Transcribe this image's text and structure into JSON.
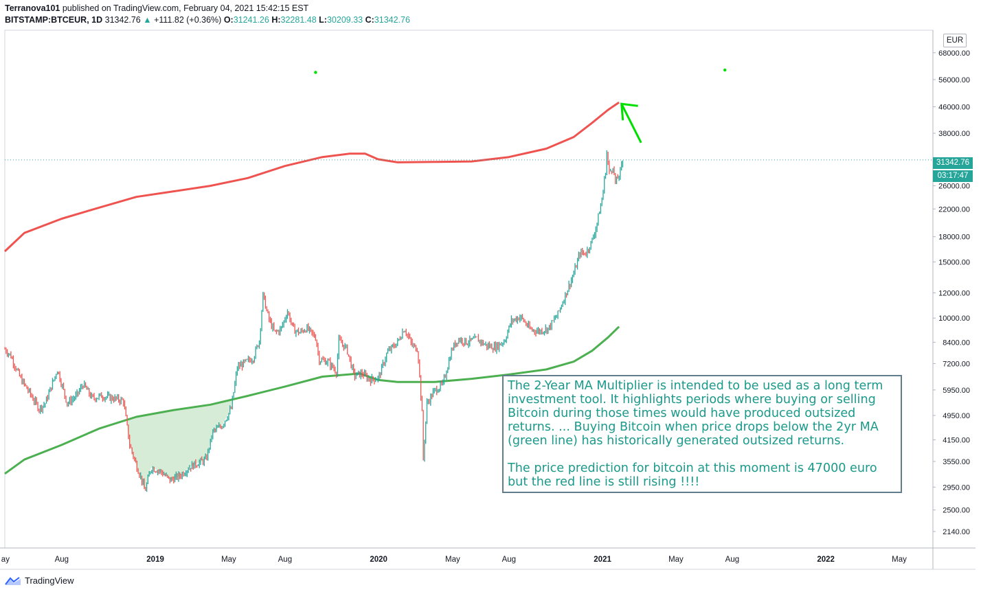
{
  "header": {
    "publisher": "Terranova101",
    "published_text": "published on TradingView.com, February 04, 2021 15:42:15 EST",
    "symbol": "BITSTAMP:BTCEUR, 1D",
    "last": "31342.76",
    "change": "+111.82 (+0.36%)",
    "o_label": "O:",
    "o": "31241.26",
    "h_label": "H:",
    "h": "32281.48",
    "l_label": "L:",
    "l": "30209.33",
    "c_label": "C:",
    "c": "31342.76"
  },
  "currency": "EUR",
  "price_tag": {
    "price": "31342.76",
    "countdown": "03:17:47"
  },
  "annotation": {
    "text": "The 2-Year MA Multiplier is intended to be used as a long term investment tool. It highlights periods where buying or selling Bitcoin during those times would have produced outsized returns. ... Buying Bitcoin when price drops below the 2yr MA (green line) has historically generated outsized returns.\n\nThe price prediction for bitcoin at this moment is 47000 euro but the red line is still rising !!!!"
  },
  "footer": {
    "brand": "TradingView"
  },
  "colors": {
    "candle_up": "#26a69a",
    "candle_down": "#ef5350",
    "ma_red": "#ef5350",
    "ma_green": "#4caf50",
    "arrow": "#00e000",
    "fill_green": "#c8e6c9"
  },
  "chart_data": {
    "type": "line",
    "title": "",
    "scale": "log",
    "ylim": [
      1900,
      80000
    ],
    "y_ticks": [
      "68000.00",
      "56000.00",
      "46000.00",
      "38000.00",
      "31342.76",
      "26000.00",
      "22000.00",
      "18000.00",
      "15000.00",
      "12000.00",
      "10000.00",
      "8400.00",
      "7200.00",
      "5950.00",
      "4950.00",
      "4150.00",
      "3550.00",
      "2950.00",
      "2500.00",
      "2140.00"
    ],
    "x_ticks": [
      {
        "label": "ay",
        "date": "2018-05-01"
      },
      {
        "label": "Aug",
        "date": "2018-08-01"
      },
      {
        "label": "2019",
        "date": "2019-01-01"
      },
      {
        "label": "May",
        "date": "2019-05-01"
      },
      {
        "label": "Aug",
        "date": "2019-08-01"
      },
      {
        "label": "2020",
        "date": "2020-01-01"
      },
      {
        "label": "May",
        "date": "2020-05-01"
      },
      {
        "label": "Aug",
        "date": "2020-08-01"
      },
      {
        "label": "2021",
        "date": "2021-01-01"
      },
      {
        "label": "May",
        "date": "2021-05-01"
      },
      {
        "label": "Aug",
        "date": "2021-08-01"
      },
      {
        "label": "2022",
        "date": "2022-01-01"
      },
      {
        "label": "May",
        "date": "2022-05-01"
      }
    ],
    "bold_x_labels": [
      "2019",
      "2020",
      "2021",
      "2022"
    ],
    "series": [
      {
        "name": "",
        "style": "price",
        "points": [
          [
            "2018-04-30",
            8000
          ],
          [
            "2018-05-10",
            7600
          ],
          [
            "2018-05-25",
            6500
          ],
          [
            "2018-06-10",
            5800
          ],
          [
            "2018-06-25",
            5200
          ],
          [
            "2018-07-05",
            5400
          ],
          [
            "2018-07-25",
            6900
          ],
          [
            "2018-08-10",
            5400
          ],
          [
            "2018-08-25",
            5700
          ],
          [
            "2018-09-05",
            6200
          ],
          [
            "2018-09-20",
            5600
          ],
          [
            "2018-10-05",
            5700
          ],
          [
            "2018-10-25",
            5600
          ],
          [
            "2018-11-10",
            5500
          ],
          [
            "2018-11-20",
            4000
          ],
          [
            "2018-11-30",
            3500
          ],
          [
            "2018-12-10",
            3100
          ],
          [
            "2018-12-15",
            2850
          ],
          [
            "2018-12-25",
            3400
          ],
          [
            "2019-01-10",
            3300
          ],
          [
            "2019-01-25",
            3100
          ],
          [
            "2019-02-10",
            3200
          ],
          [
            "2019-02-25",
            3400
          ],
          [
            "2019-03-10",
            3500
          ],
          [
            "2019-03-25",
            3600
          ],
          [
            "2019-04-05",
            4400
          ],
          [
            "2019-04-20",
            4600
          ],
          [
            "2019-05-05",
            5200
          ],
          [
            "2019-05-15",
            7000
          ],
          [
            "2019-05-25",
            7200
          ],
          [
            "2019-06-10",
            7500
          ],
          [
            "2019-06-20",
            8500
          ],
          [
            "2019-06-26",
            11800
          ],
          [
            "2019-07-05",
            10000
          ],
          [
            "2019-07-15",
            9000
          ],
          [
            "2019-07-25",
            9200
          ],
          [
            "2019-08-05",
            10500
          ],
          [
            "2019-08-15",
            9200
          ],
          [
            "2019-08-25",
            9000
          ],
          [
            "2019-09-05",
            9300
          ],
          [
            "2019-09-20",
            8700
          ],
          [
            "2019-09-26",
            7400
          ],
          [
            "2019-10-10",
            7300
          ],
          [
            "2019-10-24",
            6800
          ],
          [
            "2019-10-28",
            8500
          ],
          [
            "2019-11-10",
            8000
          ],
          [
            "2019-11-22",
            6600
          ],
          [
            "2019-12-05",
            6700
          ],
          [
            "2019-12-18",
            6400
          ],
          [
            "2020-01-01",
            6500
          ],
          [
            "2020-01-15",
            7800
          ],
          [
            "2020-02-01",
            8400
          ],
          [
            "2020-02-12",
            9300
          ],
          [
            "2020-02-25",
            8200
          ],
          [
            "2020-03-05",
            8000
          ],
          [
            "2020-03-12",
            5000
          ],
          [
            "2020-03-13",
            3400
          ],
          [
            "2020-03-20",
            5400
          ],
          [
            "2020-04-01",
            5900
          ],
          [
            "2020-04-15",
            6200
          ],
          [
            "2020-04-30",
            8000
          ],
          [
            "2020-05-10",
            8600
          ],
          [
            "2020-05-25",
            8400
          ],
          [
            "2020-06-10",
            8600
          ],
          [
            "2020-06-25",
            8200
          ],
          [
            "2020-07-10",
            8100
          ],
          [
            "2020-07-25",
            8500
          ],
          [
            "2020-08-05",
            9800
          ],
          [
            "2020-08-20",
            10100
          ],
          [
            "2020-09-05",
            9200
          ],
          [
            "2020-09-20",
            9100
          ],
          [
            "2020-10-05",
            9300
          ],
          [
            "2020-10-20",
            10300
          ],
          [
            "2020-11-01",
            11800
          ],
          [
            "2020-11-15",
            13800
          ],
          [
            "2020-11-25",
            16000
          ],
          [
            "2020-12-05",
            16000
          ],
          [
            "2020-12-15",
            17500
          ],
          [
            "2020-12-22",
            19500
          ],
          [
            "2020-12-31",
            23500
          ],
          [
            "2021-01-06",
            29000
          ],
          [
            "2021-01-08",
            33000
          ],
          [
            "2021-01-12",
            28500
          ],
          [
            "2021-01-18",
            30000
          ],
          [
            "2021-01-22",
            26500
          ],
          [
            "2021-01-28",
            28000
          ],
          [
            "2021-02-04",
            31342.76
          ]
        ]
      },
      {
        "name": "",
        "style": "ma_red",
        "points": [
          [
            "2018-04-30",
            16200
          ],
          [
            "2018-06-01",
            18500
          ],
          [
            "2018-08-01",
            20500
          ],
          [
            "2018-10-01",
            22200
          ],
          [
            "2018-12-01",
            24000
          ],
          [
            "2019-02-01",
            25000
          ],
          [
            "2019-04-01",
            26000
          ],
          [
            "2019-06-01",
            27500
          ],
          [
            "2019-08-01",
            30000
          ],
          [
            "2019-10-01",
            32000
          ],
          [
            "2019-11-15",
            32800
          ],
          [
            "2019-12-10",
            32800
          ],
          [
            "2019-12-31",
            31500
          ],
          [
            "2020-02-01",
            30800
          ],
          [
            "2020-04-01",
            30900
          ],
          [
            "2020-06-01",
            31000
          ],
          [
            "2020-08-01",
            32000
          ],
          [
            "2020-10-01",
            34000
          ],
          [
            "2020-11-15",
            37000
          ],
          [
            "2020-12-15",
            41000
          ],
          [
            "2021-01-10",
            45000
          ],
          [
            "2021-01-28",
            47500
          ]
        ]
      },
      {
        "name": "",
        "style": "ma_green",
        "points": [
          [
            "2018-04-30",
            3250
          ],
          [
            "2018-06-01",
            3600
          ],
          [
            "2018-08-01",
            4000
          ],
          [
            "2018-10-01",
            4500
          ],
          [
            "2018-12-01",
            4900
          ],
          [
            "2019-02-01",
            5150
          ],
          [
            "2019-04-01",
            5350
          ],
          [
            "2019-06-01",
            5700
          ],
          [
            "2019-08-01",
            6100
          ],
          [
            "2019-10-01",
            6550
          ],
          [
            "2019-12-01",
            6700
          ],
          [
            "2019-12-31",
            6400
          ],
          [
            "2020-02-01",
            6300
          ],
          [
            "2020-04-01",
            6300
          ],
          [
            "2020-06-01",
            6450
          ],
          [
            "2020-08-01",
            6650
          ],
          [
            "2020-10-01",
            6900
          ],
          [
            "2020-11-15",
            7300
          ],
          [
            "2020-12-15",
            7900
          ],
          [
            "2021-01-10",
            8700
          ],
          [
            "2021-01-28",
            9400
          ]
        ]
      }
    ],
    "arrow_marker": {
      "from": [
        "2021-03-05",
        35500
      ],
      "to": [
        "2021-02-01",
        47000
      ]
    },
    "dots": [
      [
        "2019-09-20",
        59000
      ],
      [
        "2021-07-20",
        60000
      ]
    ],
    "shaded_region": {
      "from": "2018-11-10",
      "to": "2019-05-10",
      "between": "price_below_green_ma"
    },
    "grid": false
  }
}
